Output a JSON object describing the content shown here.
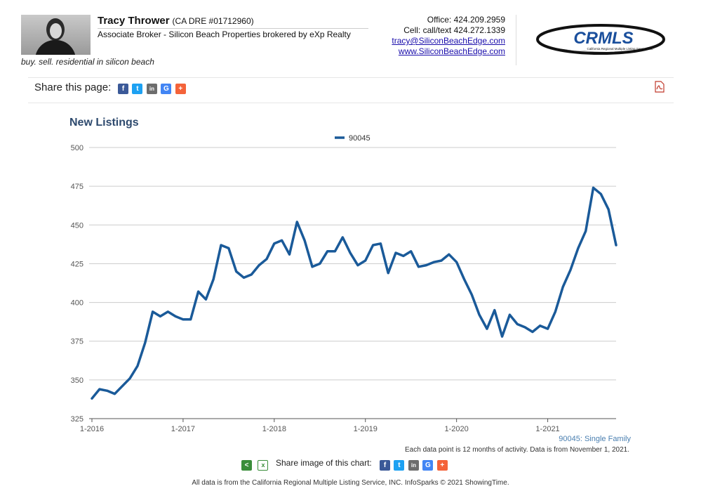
{
  "agent": {
    "name": "Tracy Thrower",
    "license": "(CA DRE #01712960)",
    "title": "Associate Broker - Silicon Beach Properties brokered by eXp Realty",
    "tagline": "buy. sell. residential in silicon beach",
    "office": "Office: 424.209.2959",
    "cell": "Cell: call/text 424.272.1339",
    "email": "tracy@SiliconBeachEdge.com",
    "website": "www.SiliconBeachEdge.com"
  },
  "logo": {
    "text": "CRMLS",
    "subtext": "California Regional Multiple Listing Service, Inc."
  },
  "share_page": {
    "label": "Share this page:",
    "icons": [
      {
        "name": "facebook-icon",
        "glyph": "f",
        "color": "#3b5998"
      },
      {
        "name": "twitter-icon",
        "glyph": "t",
        "color": "#1da1f2"
      },
      {
        "name": "linkedin-icon",
        "glyph": "in",
        "color": "#6d6d6d"
      },
      {
        "name": "google-icon",
        "glyph": "G",
        "color": "#4285f4"
      },
      {
        "name": "more-share-icon",
        "glyph": "+",
        "color": "#f4633a"
      }
    ]
  },
  "share_chart": {
    "label": "Share image of this chart:"
  },
  "chart_data": {
    "type": "line",
    "title": "New Listings",
    "legend": [
      "90045"
    ],
    "legend_position": "top-center",
    "subtitle": "90045: Single Family",
    "note": "Each data point is 12 months of activity. Data is from November 1, 2021.",
    "ylim": [
      325,
      500
    ],
    "yticks": [
      325,
      350,
      375,
      400,
      425,
      450,
      475,
      500
    ],
    "xticks": [
      "1-2016",
      "1-2017",
      "1-2018",
      "1-2019",
      "1-2020",
      "1-2021"
    ],
    "grid": true,
    "line_color": "#1a5a99",
    "series": [
      {
        "name": "90045",
        "start_label": "1-2016",
        "values": [
          338,
          344,
          343,
          341,
          346,
          351,
          359,
          374,
          394,
          391,
          394,
          391,
          389,
          389,
          407,
          402,
          415,
          437,
          435,
          420,
          416,
          418,
          424,
          428,
          438,
          440,
          431,
          452,
          440,
          423,
          425,
          433,
          433,
          442,
          432,
          424,
          427,
          437,
          438,
          419,
          432,
          430,
          433,
          423,
          424,
          426,
          427,
          431,
          426,
          415,
          405,
          392,
          383,
          395,
          378,
          392,
          386,
          384,
          381,
          385,
          383,
          394,
          410,
          421,
          435,
          446,
          474,
          470,
          460,
          437
        ]
      }
    ]
  },
  "credit": "All data is from the California Regional Multiple Listing Service, INC. InfoSparks © 2021 ShowingTime."
}
